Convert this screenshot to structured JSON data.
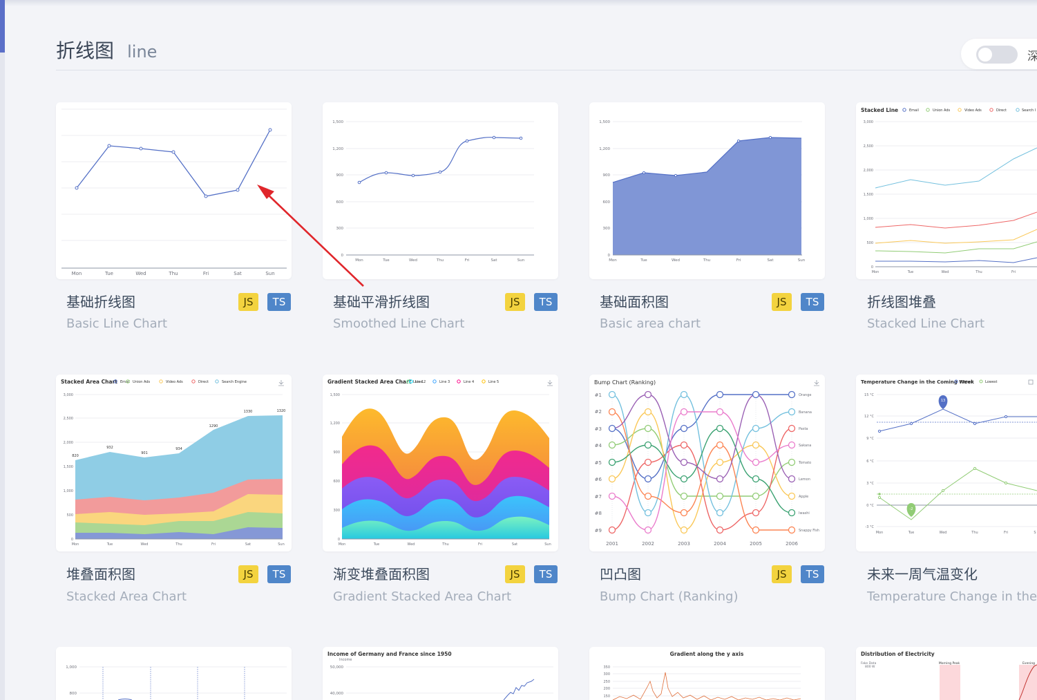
{
  "header": {
    "title": "折线图",
    "subtitle": "line",
    "toggle_label": "深"
  },
  "cards": [
    {
      "name": "基础折线图",
      "sub": "Basic Line Chart",
      "js": "JS",
      "ts": "TS"
    },
    {
      "name": "基础平滑折线图",
      "sub": "Smoothed Line Chart",
      "js": "JS",
      "ts": "TS"
    },
    {
      "name": "基础面积图",
      "sub": "Basic area chart",
      "js": "JS",
      "ts": "TS"
    },
    {
      "name": "折线图堆叠",
      "sub": "Stacked Line Chart"
    },
    {
      "name": "堆叠面积图",
      "sub": "Stacked Area Chart",
      "js": "JS",
      "ts": "TS"
    },
    {
      "name": "渐变堆叠面积图",
      "sub": "Gradient Stacked Area Chart",
      "js": "JS",
      "ts": "TS"
    },
    {
      "name": "凹凸图",
      "sub": "Bump Chart (Ranking)",
      "js": "JS",
      "ts": "TS"
    },
    {
      "name": "未来一周气温变化",
      "sub": "Temperature Change in the C"
    }
  ],
  "thumbs": {
    "days": [
      "Mon",
      "Tue",
      "Wed",
      "Thu",
      "Fri",
      "Sat",
      "Sun"
    ],
    "days_short": [
      "Mon",
      "Tue",
      "Wed",
      "Thu",
      "Fri",
      "S"
    ],
    "smooth_y": [
      "1,500",
      "1,200",
      "900",
      "600",
      "300",
      "0"
    ],
    "stacked_line": {
      "title": "Stacked Line",
      "legend": [
        "Email",
        "Union Ads",
        "Video Ads",
        "Direct",
        "Search I"
      ],
      "y": [
        "3,000",
        "2,500",
        "2,000",
        "1,500",
        "1,000",
        "500",
        "0"
      ]
    },
    "stacked_area": {
      "title": "Stacked Area Chart",
      "legend": [
        "Email",
        "Union Ads",
        "Video Ads",
        "Direct",
        "Search Engine"
      ],
      "y": [
        "3,000",
        "2,500",
        "2,000",
        "1,500",
        "1,000",
        "500",
        "0"
      ],
      "labels": [
        "820",
        "932",
        "901",
        "934",
        "1290",
        "1330",
        "1320"
      ]
    },
    "gradient": {
      "title": "Gradient Stacked Area Chart",
      "legend": [
        "Line 1",
        "Line 2",
        "Line 3",
        "Line 4",
        "Line 5"
      ],
      "y": [
        "1,500",
        "1,200",
        "900",
        "600",
        "300",
        "0"
      ]
    },
    "bump": {
      "title": "Bump Chart (Ranking)",
      "ranks": [
        "#1",
        "#2",
        "#3",
        "#4",
        "#5",
        "#6",
        "#7",
        "#8",
        "#9"
      ],
      "years": [
        "2001",
        "2002",
        "2003",
        "2004",
        "2005",
        "2006"
      ],
      "names": [
        "Orange",
        "Banana",
        "Pasta",
        "Sakana",
        "Tomato",
        "Lemon",
        "Apple",
        "Iwashi",
        "Snappy Fish"
      ]
    },
    "temp": {
      "title": "Temperature Change in the Coming Week",
      "legend": [
        "Highest",
        "Lowest"
      ],
      "y": [
        "15 °C",
        "12 °C",
        "9 °C",
        "6 °C",
        "3 °C",
        "0 °C",
        "-3 °C"
      ],
      "max_pin": "13",
      "min_pin": "-2"
    },
    "row3": {
      "c1_y": [
        "1,000",
        "800"
      ],
      "c2_title": "Income of Germany and France since 1950",
      "c2_axis": "Income",
      "c2_y": [
        "50,000",
        "40,000"
      ],
      "c3_title": "Gradient along the y axis",
      "c3_y": [
        "350",
        "300",
        "250",
        "200",
        "150"
      ],
      "c4_title": "Distribution of Electricity",
      "c4_axis": "Fake Data",
      "c4_y": "800 W",
      "c4_peak1": "Morning Peak",
      "c4_peak2": "Evening"
    }
  }
}
